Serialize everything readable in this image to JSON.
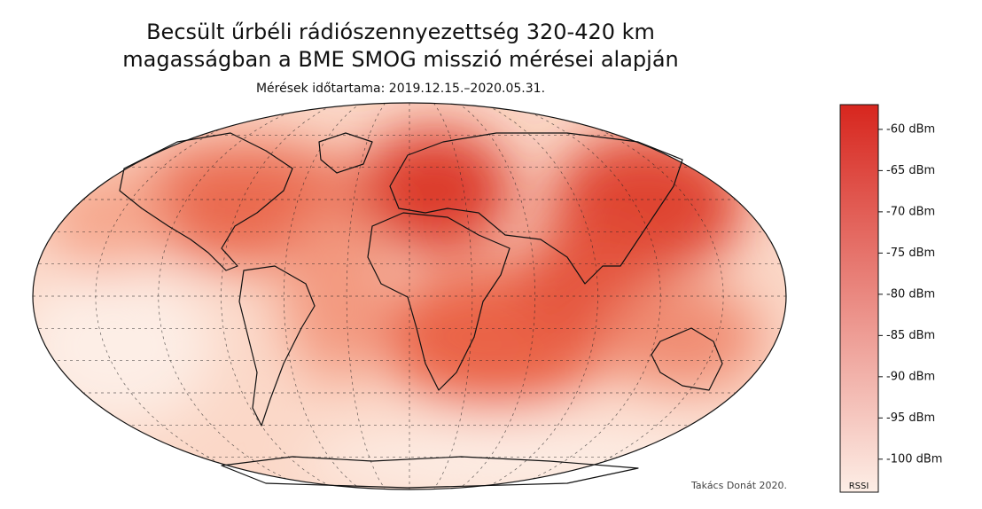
{
  "map": {
    "title": [
      "Becsült űrbéli rádiószennyezettség 320-420 km",
      "magasságban a BME SMOG misszió mérései alapján"
    ],
    "subtitle": "Mérések időtartama: 2019.12.15.–2020.05.31.",
    "credit": "Takács Donát 2020.",
    "colorbar": {
      "label": "RSSI",
      "clim": [
        -104,
        -57
      ],
      "colors": [
        "#fdeee6",
        "#d7261e"
      ],
      "ticks": [
        {
          "value": -60,
          "label": "-60 dBm"
        },
        {
          "value": -65,
          "label": "-65 dBm"
        },
        {
          "value": -70,
          "label": "-70 dBm"
        },
        {
          "value": -75,
          "label": "-75 dBm"
        },
        {
          "value": -80,
          "label": "-80 dBm"
        },
        {
          "value": -85,
          "label": "-85 dBm"
        },
        {
          "value": -90,
          "label": "-90 dBm"
        },
        {
          "value": -95,
          "label": "-95 dBm"
        },
        {
          "value": -100,
          "label": "-100 dBm"
        }
      ]
    }
  }
}
